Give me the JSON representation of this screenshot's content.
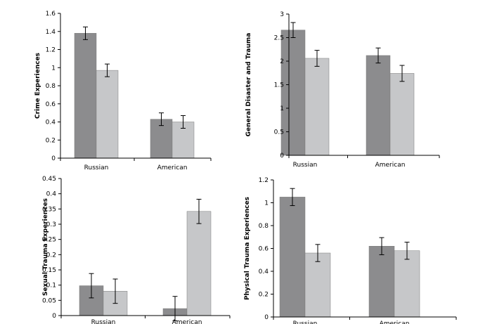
{
  "colors": {
    "series_a": "#8c8c8e",
    "series_b": "#c6c7c9",
    "axis": "#000000"
  },
  "chart_data": [
    {
      "type": "bar",
      "categories": [
        "Russian",
        "American"
      ],
      "ylabel": "Crime Experiences",
      "ylim": [
        0,
        1.6
      ],
      "yticks": [
        0,
        0.2,
        0.4,
        0.6,
        0.8,
        1,
        1.2,
        1.4,
        1.6
      ],
      "series": [
        {
          "values": [
            1.38,
            0.43
          ],
          "errors": [
            0.07,
            0.07
          ]
        },
        {
          "values": [
            0.97,
            0.4
          ],
          "errors": [
            0.07,
            0.07
          ]
        }
      ]
    },
    {
      "type": "bar",
      "categories": [
        "Russian",
        "American"
      ],
      "ylabel": "General Disaster and Trauma",
      "ylim": [
        0,
        3
      ],
      "yticks": [
        0,
        0.5,
        1,
        1.5,
        2,
        2.5,
        3
      ],
      "series": [
        {
          "values": [
            2.66,
            2.12
          ],
          "errors": [
            0.16,
            0.16
          ]
        },
        {
          "values": [
            2.06,
            1.74
          ],
          "errors": [
            0.17,
            0.17
          ]
        }
      ]
    },
    {
      "type": "bar",
      "categories": [
        "Russian",
        "American"
      ],
      "ylabel": "Sexual Trauma Experiences",
      "ylim": [
        0,
        0.45
      ],
      "yticks": [
        0,
        0.05,
        0.1,
        0.15,
        0.2,
        0.25,
        0.3,
        0.35,
        0.4,
        0.45
      ],
      "series": [
        {
          "values": [
            0.098,
            0.023
          ],
          "errors": [
            0.04,
            0.04
          ]
        },
        {
          "values": [
            0.08,
            0.342
          ],
          "errors": [
            0.04,
            0.04
          ]
        }
      ]
    },
    {
      "type": "bar",
      "categories": [
        "Russian",
        "American"
      ],
      "ylabel": "Physical Trauma Experiences",
      "ylim": [
        0,
        1.2
      ],
      "yticks": [
        0,
        0.2,
        0.4,
        0.6,
        0.8,
        1,
        1.2
      ],
      "series": [
        {
          "values": [
            1.05,
            0.62
          ],
          "errors": [
            0.075,
            0.075
          ]
        },
        {
          "values": [
            0.56,
            0.58
          ],
          "errors": [
            0.075,
            0.075
          ]
        }
      ]
    }
  ]
}
